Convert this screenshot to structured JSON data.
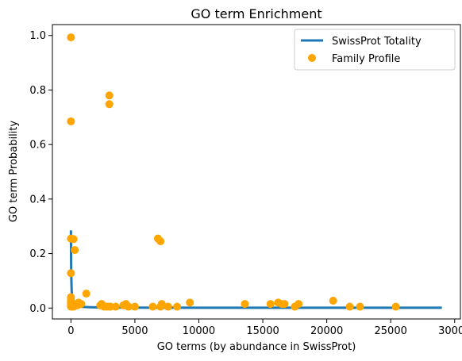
{
  "chart_data": {
    "type": "scatter",
    "title": "GO term Enrichment",
    "xlabel": "GO terms (by abundance in SwissProt)",
    "ylabel": "GO term Probability",
    "xlim": [
      -1450,
      30450
    ],
    "ylim": [
      -0.04,
      1.04
    ],
    "xticks": [
      0,
      5000,
      10000,
      15000,
      20000,
      25000,
      30000
    ],
    "yticks": [
      0.0,
      0.2,
      0.4,
      0.6,
      0.8,
      1.0
    ],
    "xtick_labels": [
      "0",
      "5000",
      "10000",
      "15000",
      "20000",
      "25000",
      "30000"
    ],
    "ytick_labels": [
      "0.0",
      "0.2",
      "0.4",
      "0.6",
      "0.8",
      "1.0"
    ],
    "grid": false,
    "legend_position": "top-right",
    "series": [
      {
        "name": "SwissProt Totality",
        "kind": "line",
        "color": "#1f77b4",
        "x": [
          0,
          10,
          20,
          40,
          60,
          90,
          130,
          180,
          250,
          350,
          500,
          700,
          1000,
          1500,
          2500,
          5000,
          10000,
          15000,
          20000,
          25000,
          29000
        ],
        "y": [
          0.285,
          0.2,
          0.14,
          0.09,
          0.06,
          0.04,
          0.028,
          0.02,
          0.014,
          0.01,
          0.007,
          0.005,
          0.004,
          0.003,
          0.002,
          0.0015,
          0.001,
          0.001,
          0.001,
          0.001,
          0.001
        ]
      },
      {
        "name": "Family Profile",
        "kind": "scatter",
        "color": "#ffa500",
        "x": [
          0,
          0,
          0,
          0,
          0,
          0,
          0,
          0,
          0,
          0,
          100,
          200,
          200,
          300,
          400,
          500,
          600,
          800,
          1200,
          2300,
          2400,
          2600,
          2800,
          3000,
          3000,
          3000,
          3100,
          3500,
          4100,
          4300,
          4500,
          5000,
          6400,
          6800,
          7000,
          7000,
          7100,
          7600,
          8300,
          9300,
          13600,
          15600,
          16200,
          16500,
          16700,
          17500,
          17800,
          20500,
          21800,
          22600,
          25400
        ],
        "y": [
          0.993,
          0.685,
          0.255,
          0.128,
          0.04,
          0.03,
          0.022,
          0.015,
          0.01,
          0.005,
          0.005,
          0.253,
          0.005,
          0.213,
          0.015,
          0.01,
          0.02,
          0.015,
          0.053,
          0.01,
          0.015,
          0.005,
          0.005,
          0.78,
          0.748,
          0.005,
          0.005,
          0.005,
          0.01,
          0.015,
          0.005,
          0.005,
          0.005,
          0.255,
          0.245,
          0.005,
          0.015,
          0.005,
          0.005,
          0.02,
          0.015,
          0.015,
          0.02,
          0.015,
          0.015,
          0.005,
          0.015,
          0.027,
          0.005,
          0.005,
          0.005
        ]
      }
    ]
  }
}
